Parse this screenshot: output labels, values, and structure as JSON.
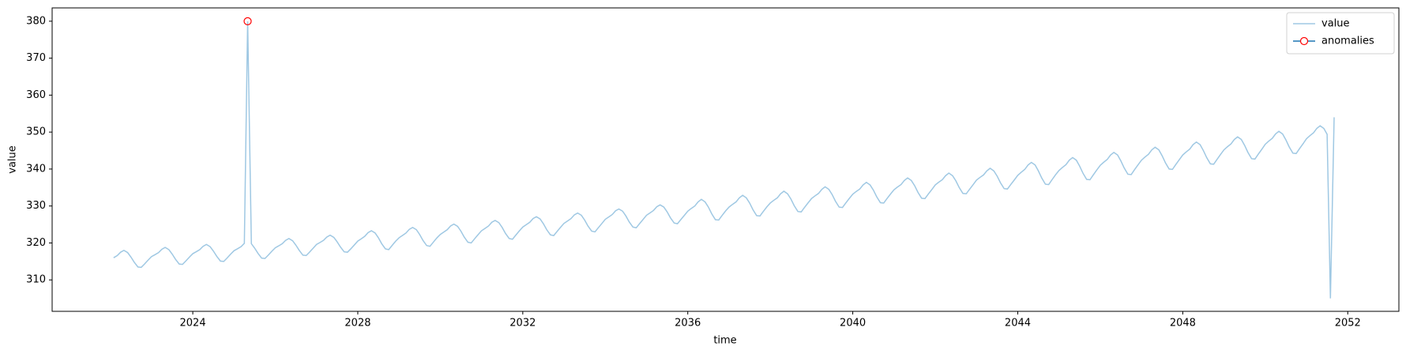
{
  "chart_data": {
    "type": "line",
    "xlabel": "time",
    "ylabel": "value",
    "xlim": [
      2020.59,
      2053.24
    ],
    "ylim": [
      301.5,
      383.6
    ],
    "xticks": [
      2024,
      2028,
      2032,
      2036,
      2040,
      2044,
      2048,
      2052
    ],
    "yticks": [
      310,
      320,
      330,
      340,
      350,
      360,
      370,
      380
    ],
    "legend": "upper right",
    "series": [
      {
        "name": "value",
        "color": "#9fc8e3",
        "x": [
          2022.08,
          2022.17,
          2022.25,
          2022.33,
          2022.42,
          2022.5,
          2022.58,
          2022.67,
          2022.75,
          2022.83,
          2022.92,
          2023,
          2023.08,
          2023.17,
          2023.25,
          2023.33,
          2023.42,
          2023.5,
          2023.58,
          2023.67,
          2023.75,
          2023.83,
          2023.92,
          2024,
          2024.08,
          2024.17,
          2024.25,
          2024.33,
          2024.42,
          2024.5,
          2024.58,
          2024.67,
          2024.75,
          2024.83,
          2024.92,
          2025,
          2025.08,
          2025.17,
          2025.25,
          2025.33,
          2025.42,
          2025.5,
          2025.58,
          2025.67,
          2025.75,
          2025.83,
          2025.92,
          2026,
          2026.08,
          2026.17,
          2026.25,
          2026.33,
          2026.42,
          2026.5,
          2026.58,
          2026.67,
          2026.75,
          2026.83,
          2026.92,
          2027,
          2027.08,
          2027.17,
          2027.25,
          2027.33,
          2027.42,
          2027.5,
          2027.58,
          2027.67,
          2027.75,
          2027.83,
          2027.92,
          2028,
          2028.08,
          2028.17,
          2028.25,
          2028.33,
          2028.42,
          2028.5,
          2028.58,
          2028.67,
          2028.75,
          2028.83,
          2028.92,
          2029,
          2029.08,
          2029.17,
          2029.25,
          2029.33,
          2029.42,
          2029.5,
          2029.58,
          2029.67,
          2029.75,
          2029.83,
          2029.92,
          2030,
          2030.08,
          2030.17,
          2030.25,
          2030.33,
          2030.42,
          2030.5,
          2030.58,
          2030.67,
          2030.75,
          2030.83,
          2030.92,
          2031,
          2031.08,
          2031.17,
          2031.25,
          2031.33,
          2031.42,
          2031.5,
          2031.58,
          2031.67,
          2031.75,
          2031.83,
          2031.92,
          2032,
          2032.08,
          2032.17,
          2032.25,
          2032.33,
          2032.42,
          2032.5,
          2032.58,
          2032.67,
          2032.75,
          2032.83,
          2032.92,
          2033,
          2033.08,
          2033.17,
          2033.25,
          2033.33,
          2033.42,
          2033.5,
          2033.58,
          2033.67,
          2033.75,
          2033.83,
          2033.92,
          2034,
          2034.08,
          2034.17,
          2034.25,
          2034.33,
          2034.42,
          2034.5,
          2034.58,
          2034.67,
          2034.75,
          2034.83,
          2034.92,
          2035,
          2035.08,
          2035.17,
          2035.25,
          2035.33,
          2035.42,
          2035.5,
          2035.58,
          2035.67,
          2035.75,
          2035.83,
          2035.92,
          2036,
          2036.08,
          2036.17,
          2036.25,
          2036.33,
          2036.42,
          2036.5,
          2036.58,
          2036.67,
          2036.75,
          2036.83,
          2036.92,
          2037,
          2037.08,
          2037.17,
          2037.25,
          2037.33,
          2037.42,
          2037.5,
          2037.58,
          2037.67,
          2037.75,
          2037.83,
          2037.92,
          2038,
          2038.08,
          2038.17,
          2038.25,
          2038.33,
          2038.42,
          2038.5,
          2038.58,
          2038.67,
          2038.75,
          2038.83,
          2038.92,
          2039,
          2039.08,
          2039.17,
          2039.25,
          2039.33,
          2039.42,
          2039.5,
          2039.58,
          2039.67,
          2039.75,
          2039.83,
          2039.92,
          2040,
          2040.08,
          2040.17,
          2040.25,
          2040.33,
          2040.42,
          2040.5,
          2040.58,
          2040.67,
          2040.75,
          2040.83,
          2040.92,
          2041,
          2041.08,
          2041.17,
          2041.25,
          2041.33,
          2041.42,
          2041.5,
          2041.58,
          2041.67,
          2041.75,
          2041.83,
          2041.92,
          2042,
          2042.08,
          2042.17,
          2042.25,
          2042.33,
          2042.42,
          2042.5,
          2042.58,
          2042.67,
          2042.75,
          2042.83,
          2042.92,
          2043,
          2043.08,
          2043.17,
          2043.25,
          2043.33,
          2043.42,
          2043.5,
          2043.58,
          2043.67,
          2043.75,
          2043.83,
          2043.92,
          2044,
          2044.08,
          2044.17,
          2044.25,
          2044.33,
          2044.42,
          2044.5,
          2044.58,
          2044.67,
          2044.75,
          2044.83,
          2044.92,
          2045,
          2045.08,
          2045.17,
          2045.25,
          2045.33,
          2045.42,
          2045.5,
          2045.58,
          2045.67,
          2045.75,
          2045.83,
          2045.92,
          2046,
          2046.08,
          2046.17,
          2046.25,
          2046.33,
          2046.42,
          2046.5,
          2046.58,
          2046.67,
          2046.75,
          2046.83,
          2046.92,
          2047,
          2047.08,
          2047.17,
          2047.25,
          2047.33,
          2047.42,
          2047.5,
          2047.58,
          2047.67,
          2047.75,
          2047.83,
          2047.92,
          2048,
          2048.08,
          2048.17,
          2048.25,
          2048.33,
          2048.42,
          2048.5,
          2048.58,
          2048.67,
          2048.75,
          2048.83,
          2048.92,
          2049,
          2049.08,
          2049.17,
          2049.25,
          2049.33,
          2049.42,
          2049.5,
          2049.58,
          2049.67,
          2049.75,
          2049.83,
          2049.92,
          2050,
          2050.08,
          2050.17,
          2050.25,
          2050.33,
          2050.42,
          2050.5,
          2050.58,
          2050.67,
          2050.75,
          2050.83,
          2050.92,
          2051,
          2051.08,
          2051.17,
          2051.25,
          2051.33,
          2051.42,
          2051.5,
          2051.58,
          2051.67
        ],
        "values": [
          316.0,
          316.6,
          317.5,
          318.0,
          317.4,
          316.2,
          314.8,
          313.5,
          313.4,
          314.3,
          315.4,
          316.3,
          316.8,
          317.4,
          318.3,
          318.8,
          318.2,
          317.0,
          315.6,
          314.3,
          314.2,
          315.1,
          316.2,
          317.1,
          317.6,
          318.2,
          319.1,
          319.6,
          319.0,
          317.8,
          316.4,
          315.1,
          315.0,
          315.9,
          317.0,
          317.9,
          318.4,
          319.0,
          319.9,
          380,
          319.8,
          318.6,
          317.2,
          315.9,
          315.8,
          316.7,
          317.8,
          318.7,
          319.2,
          319.8,
          320.7,
          321.2,
          320.6,
          319.4,
          318.0,
          316.7,
          316.6,
          317.5,
          318.6,
          319.6,
          320.1,
          320.7,
          321.6,
          322.1,
          321.5,
          320.3,
          318.9,
          317.6,
          317.5,
          318.4,
          319.5,
          320.5,
          321.1,
          321.8,
          322.8,
          323.3,
          322.7,
          321.4,
          319.8,
          318.4,
          318.2,
          319.3,
          320.5,
          321.4,
          322.0,
          322.7,
          323.7,
          324.2,
          323.6,
          322.3,
          320.7,
          319.3,
          319.1,
          320.2,
          321.4,
          322.3,
          322.9,
          323.6,
          324.6,
          325.1,
          324.5,
          323.2,
          321.6,
          320.2,
          320.0,
          321.1,
          322.3,
          323.3,
          323.9,
          324.6,
          325.6,
          326.1,
          325.5,
          324.2,
          322.6,
          321.2,
          321.0,
          322.1,
          323.3,
          324.3,
          324.9,
          325.6,
          326.6,
          327.1,
          326.5,
          325.2,
          323.6,
          322.2,
          322.0,
          323.1,
          324.3,
          325.3,
          325.9,
          326.6,
          327.6,
          328.1,
          327.5,
          326.2,
          324.6,
          323.2,
          323.0,
          324.1,
          325.3,
          326.4,
          327.0,
          327.7,
          328.7,
          329.2,
          328.6,
          327.3,
          325.7,
          324.3,
          324.1,
          325.2,
          326.4,
          327.5,
          328.1,
          328.8,
          329.8,
          330.3,
          329.7,
          328.4,
          326.8,
          325.4,
          325.2,
          326.3,
          327.5,
          328.6,
          329.3,
          330.0,
          331.1,
          331.8,
          331.1,
          329.7,
          327.9,
          326.3,
          326.2,
          327.4,
          328.7,
          329.7,
          330.4,
          331.1,
          332.2,
          332.9,
          332.2,
          330.8,
          329.0,
          327.4,
          327.3,
          328.5,
          329.8,
          330.8,
          331.5,
          332.2,
          333.3,
          334.0,
          333.3,
          331.9,
          330.1,
          328.5,
          328.4,
          329.6,
          330.9,
          332.0,
          332.7,
          333.4,
          334.5,
          335.2,
          334.5,
          333.1,
          331.3,
          329.7,
          329.6,
          330.8,
          332.1,
          333.2,
          333.9,
          334.6,
          335.7,
          336.4,
          335.7,
          334.3,
          332.5,
          330.9,
          330.8,
          332.0,
          333.3,
          334.4,
          335.1,
          335.8,
          336.9,
          337.6,
          336.9,
          335.5,
          333.7,
          332.1,
          332.0,
          333.2,
          334.5,
          335.7,
          336.4,
          337.1,
          338.2,
          338.9,
          338.2,
          336.8,
          335.0,
          333.4,
          333.3,
          334.5,
          335.8,
          337.0,
          337.7,
          338.4,
          339.5,
          340.2,
          339.5,
          338.1,
          336.3,
          334.7,
          334.6,
          335.8,
          337.1,
          338.3,
          339.1,
          339.9,
          341.1,
          341.8,
          341.1,
          339.5,
          337.6,
          335.9,
          335.8,
          337.1,
          338.5,
          339.6,
          340.4,
          341.2,
          342.4,
          343.1,
          342.4,
          340.8,
          338.9,
          337.2,
          337.1,
          338.4,
          339.8,
          341.0,
          341.8,
          342.6,
          343.8,
          344.5,
          343.8,
          342.2,
          340.3,
          338.6,
          338.5,
          339.8,
          341.2,
          342.4,
          343.2,
          344.0,
          345.2,
          345.9,
          345.2,
          343.6,
          341.7,
          340.0,
          339.9,
          341.2,
          342.6,
          343.8,
          344.6,
          345.4,
          346.6,
          347.3,
          346.6,
          345.0,
          343.1,
          341.4,
          341.3,
          342.6,
          344.0,
          345.2,
          346.0,
          346.8,
          348.0,
          348.7,
          348.0,
          346.4,
          344.5,
          342.8,
          342.7,
          344.0,
          345.4,
          346.7,
          347.5,
          348.3,
          349.5,
          350.2,
          349.5,
          347.9,
          346.0,
          344.3,
          344.2,
          345.5,
          346.9,
          348.2,
          349.0,
          349.8,
          351.0,
          351.7,
          351.0,
          349.4,
          305,
          354
        ]
      },
      {
        "name": "anomalies",
        "color": "#1f77b4",
        "marker_color": "red",
        "x": [
          2025.33
        ],
        "values": [
          380
        ]
      }
    ]
  }
}
